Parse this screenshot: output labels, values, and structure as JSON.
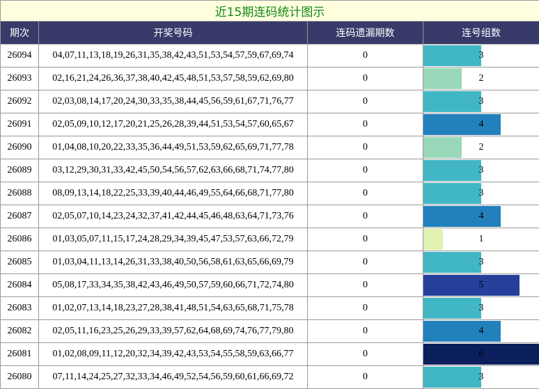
{
  "title": "近15期连码统计图示",
  "table": {
    "headers": [
      "期次",
      "开奖号码",
      "连码遗漏期数",
      "连号组数"
    ],
    "rows": [
      [
        "26094",
        "04,07,11,13,18,19,26,31,35,38,42,43,51,53,54,57,59,67,69,74",
        0,
        3
      ],
      [
        "26093",
        "02,16,21,24,26,36,37,38,40,42,45,48,51,53,57,58,59,62,69,80",
        0,
        2
      ],
      [
        "26092",
        "02,03,08,14,17,20,24,30,33,35,38,44,45,56,59,61,67,71,76,77",
        0,
        3
      ],
      [
        "26091",
        "02,05,09,10,12,17,20,21,25,26,28,39,44,51,53,54,57,60,65,67",
        0,
        4
      ],
      [
        "26090",
        "01,04,08,10,20,22,33,35,36,44,49,51,53,59,62,65,69,71,77,78",
        0,
        2
      ],
      [
        "26089",
        "03,12,29,30,31,33,42,45,50,54,56,57,62,63,66,68,71,74,77,80",
        0,
        3
      ],
      [
        "26088",
        "08,09,13,14,18,22,25,33,39,40,44,46,49,55,64,66,68,71,77,80",
        0,
        3
      ],
      [
        "26087",
        "02,05,07,10,14,23,24,32,37,41,42,44,45,46,48,63,64,71,73,76",
        0,
        4
      ],
      [
        "26086",
        "01,03,05,07,11,15,17,24,28,29,34,39,45,47,53,57,63,66,72,79",
        0,
        1
      ],
      [
        "26085",
        "01,03,04,11,13,14,26,31,33,38,40,50,56,58,61,63,65,66,69,79",
        0,
        3
      ],
      [
        "26084",
        "05,08,17,33,34,35,38,42,43,46,49,50,57,59,60,66,71,72,74,80",
        0,
        5
      ],
      [
        "26083",
        "01,02,07,13,14,18,23,27,28,38,41,48,51,54,63,65,68,71,75,78",
        0,
        3
      ],
      [
        "26082",
        "02,05,11,16,23,25,26,29,33,39,57,62,64,68,69,74,76,77,79,80",
        0,
        4
      ],
      [
        "26081",
        "01,02,08,09,11,12,20,32,34,39,42,43,53,54,55,58,59,63,66,77",
        0,
        6
      ],
      [
        "26080",
        "07,11,14,24,25,27,32,33,34,46,49,52,54,56,59,60,61,66,69,72",
        0,
        3
      ]
    ]
  },
  "bar_colors": [
    "#e2f2b2",
    "#98d8b8",
    "#41b6c4",
    "#2280bc",
    "#253f9b",
    "#0b1f5c"
  ]
}
